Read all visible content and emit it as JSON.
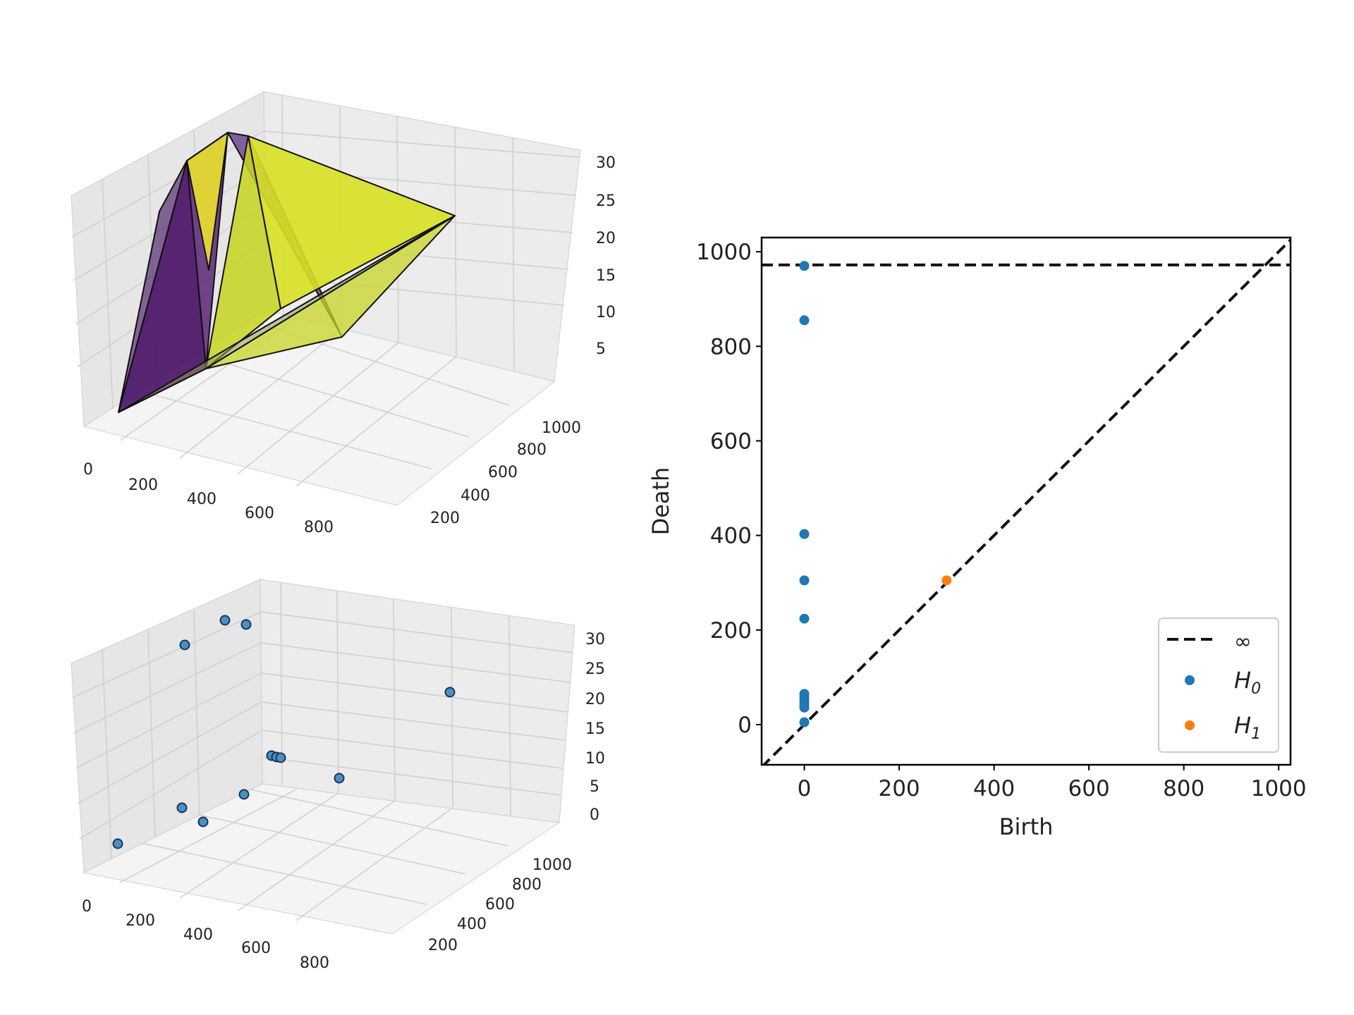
{
  "chart_data": [
    {
      "type": "surface3d",
      "x_ticks": [
        "0",
        "200",
        "400",
        "600",
        "800"
      ],
      "y_ticks": [
        "200",
        "400",
        "600",
        "800",
        "1000"
      ],
      "z_ticks": [
        "5",
        "10",
        "15",
        "20",
        "25",
        "30"
      ],
      "colors": {
        "low": "#440154",
        "high": "#dde318",
        "pane": "#f2f2f2"
      }
    },
    {
      "type": "scatter3d",
      "x_ticks": [
        "0",
        "200",
        "400",
        "600",
        "800"
      ],
      "y_ticks": [
        "200",
        "400",
        "600",
        "800",
        "1000"
      ],
      "z_ticks": [
        "0",
        "5",
        "10",
        "15",
        "20",
        "25",
        "30"
      ],
      "colors": {
        "point": "#4a90c8",
        "pane": "#f2f2f2"
      }
    },
    {
      "type": "scatter",
      "xlabel": "Birth",
      "ylabel": "Death",
      "xlim": [
        -90,
        1025
      ],
      "ylim": [
        -85,
        1030
      ],
      "x_ticks": [
        0,
        200,
        400,
        600,
        800,
        1000
      ],
      "y_ticks": [
        0,
        200,
        400,
        600,
        800,
        1000
      ],
      "infinity_value": 972,
      "legend": {
        "position": "lower-right",
        "entries": [
          {
            "label": "∞",
            "style": "dashed-line",
            "color": "#000000"
          },
          {
            "label": "H",
            "sub": "0",
            "style": "dot",
            "color": "#1f77b4"
          },
          {
            "label": "H",
            "sub": "1",
            "style": "dot",
            "color": "#ff7f0e"
          }
        ]
      },
      "series": [
        {
          "name": "H0",
          "color": "#1f77b4",
          "points": [
            [
              0,
              970
            ],
            [
              0,
              855
            ],
            [
              0,
              403
            ],
            [
              0,
              305
            ],
            [
              0,
              224
            ],
            [
              0,
              65
            ],
            [
              0,
              57
            ],
            [
              0,
              50
            ],
            [
              0,
              43
            ],
            [
              0,
              36
            ],
            [
              0,
              5
            ]
          ]
        },
        {
          "name": "H1",
          "color": "#ff7f0e",
          "points": [
            [
              300,
              305
            ]
          ]
        }
      ]
    }
  ]
}
